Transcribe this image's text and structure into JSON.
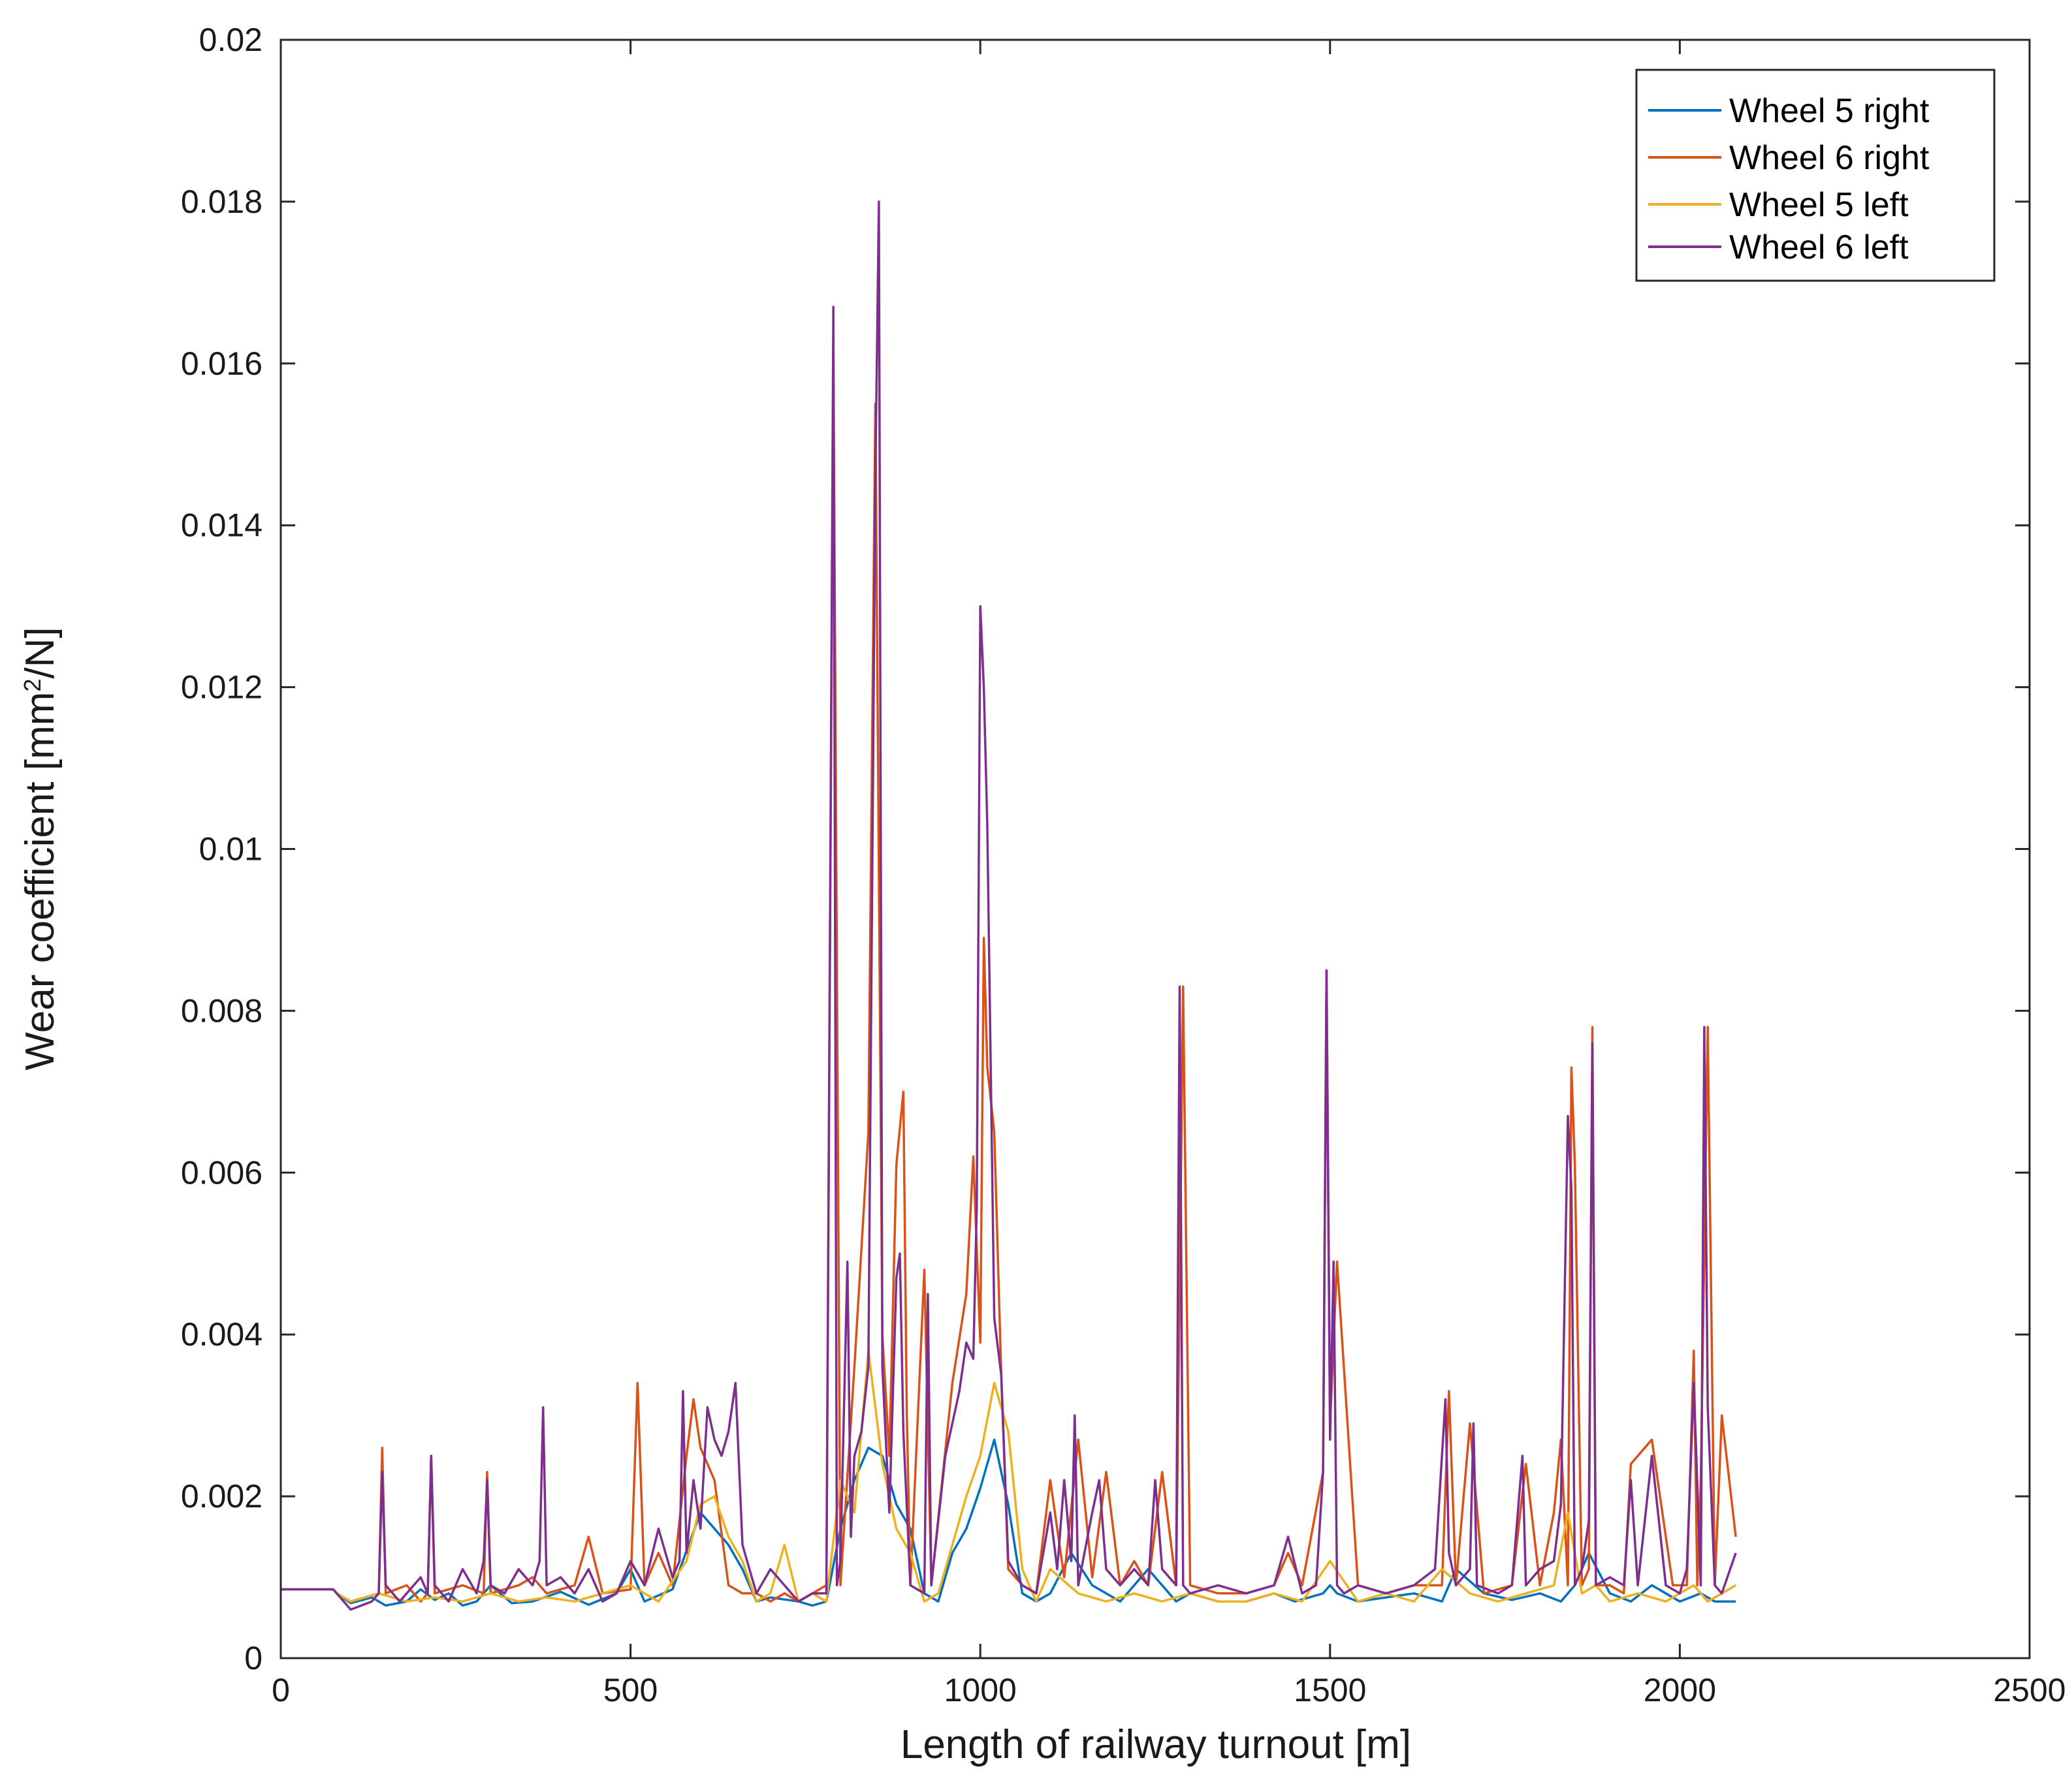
{
  "chart_data": {
    "type": "line",
    "xlabel": "Length of railway turnout [m]",
    "ylabel_main": "Wear coefficient   [mm",
    "ylabel_sup": "2",
    "ylabel_end": "/N]",
    "xlim": [
      0,
      2500
    ],
    "ylim": [
      0,
      0.02
    ],
    "xticks": [
      0,
      500,
      1000,
      1500,
      2000,
      2500
    ],
    "xtick_labels": [
      "0",
      "500",
      "1000",
      "1500",
      "2000",
      "2500"
    ],
    "yticks": [
      0,
      0.002,
      0.004,
      0.006,
      0.008,
      0.01,
      0.012,
      0.014,
      0.016,
      0.018,
      0.02
    ],
    "ytick_labels": [
      "0",
      "0.002",
      "0.004",
      "0.006",
      "0.008",
      "0.01",
      "0.012",
      "0.014",
      "0.016",
      "0.018",
      "0.02"
    ],
    "grid": false,
    "legend_position": "top-right",
    "series": [
      {
        "name": "Wheel 5 right",
        "color": "#0072BD",
        "x": [
          0,
          75,
          80,
          100,
          130,
          150,
          180,
          200,
          220,
          240,
          260,
          280,
          300,
          330,
          360,
          400,
          440,
          480,
          500,
          520,
          560,
          600,
          620,
          640,
          660,
          680,
          700,
          740,
          760,
          780,
          800,
          820,
          840,
          860,
          880,
          900,
          920,
          940,
          960,
          980,
          1000,
          1020,
          1040,
          1060,
          1080,
          1100,
          1130,
          1160,
          1200,
          1240,
          1280,
          1300,
          1340,
          1380,
          1420,
          1450,
          1490,
          1500,
          1510,
          1540,
          1580,
          1620,
          1660,
          1680,
          1720,
          1760,
          1800,
          1830,
          1850,
          1870,
          1900,
          1930,
          1960,
          2000,
          2030,
          2050,
          2080
        ],
        "y": [
          0.00085,
          0.00085,
          0.0008,
          0.00068,
          0.00075,
          0.00065,
          0.0007,
          0.00085,
          0.00072,
          0.0008,
          0.00065,
          0.0007,
          0.0009,
          0.00068,
          0.0007,
          0.00082,
          0.00066,
          0.0008,
          0.0011,
          0.0007,
          0.00085,
          0.0018,
          0.0016,
          0.0014,
          0.0011,
          0.0007,
          0.00075,
          0.0007,
          0.00065,
          0.0007,
          0.0016,
          0.0022,
          0.0026,
          0.0025,
          0.0019,
          0.0016,
          0.0008,
          0.0007,
          0.0013,
          0.0016,
          0.0021,
          0.0027,
          0.0019,
          0.0008,
          0.0007,
          0.0008,
          0.0013,
          0.0009,
          0.0007,
          0.0011,
          0.0007,
          0.0008,
          0.0007,
          0.0007,
          0.0008,
          0.0007,
          0.0008,
          0.0009,
          0.0008,
          0.0007,
          0.00075,
          0.0008,
          0.0007,
          0.0011,
          0.0008,
          0.00072,
          0.0008,
          0.0007,
          0.0009,
          0.0013,
          0.0008,
          0.0007,
          0.0009,
          0.0007,
          0.0008,
          0.0007,
          0.0007
        ]
      },
      {
        "name": "Wheel 6 right",
        "color": "#D95319",
        "x": [
          0,
          75,
          80,
          100,
          140,
          145,
          150,
          180,
          200,
          210,
          215,
          220,
          260,
          290,
          295,
          300,
          340,
          360,
          380,
          420,
          440,
          460,
          500,
          510,
          520,
          540,
          560,
          580,
          590,
          600,
          620,
          640,
          660,
          680,
          700,
          720,
          740,
          760,
          780,
          790,
          800,
          820,
          840,
          850,
          860,
          870,
          880,
          890,
          895,
          900,
          920,
          930,
          960,
          980,
          990,
          1000,
          1005,
          1010,
          1020,
          1030,
          1040,
          1060,
          1080,
          1100,
          1120,
          1140,
          1160,
          1180,
          1200,
          1220,
          1240,
          1260,
          1280,
          1290,
          1300,
          1340,
          1380,
          1420,
          1440,
          1460,
          1490,
          1495,
          1500,
          1510,
          1540,
          1580,
          1620,
          1660,
          1670,
          1680,
          1700,
          1720,
          1760,
          1780,
          1800,
          1820,
          1830,
          1840,
          1845,
          1850,
          1860,
          1870,
          1875,
          1880,
          1900,
          1920,
          1930,
          1960,
          1990,
          2010,
          2020,
          2025,
          2030,
          2040,
          2050,
          2060,
          2080
        ],
        "y": [
          0.00085,
          0.00085,
          0.0008,
          0.0007,
          0.0008,
          0.0026,
          0.0008,
          0.0009,
          0.0007,
          0.0008,
          0.0025,
          0.0008,
          0.0009,
          0.0008,
          0.0023,
          0.0008,
          0.0009,
          0.001,
          0.0008,
          0.0009,
          0.0015,
          0.0008,
          0.00085,
          0.0034,
          0.0009,
          0.0013,
          0.0009,
          0.0025,
          0.0032,
          0.0026,
          0.0022,
          0.0009,
          0.0008,
          0.0008,
          0.0007,
          0.0008,
          0.0007,
          0.0008,
          0.0009,
          0.0162,
          0.0009,
          0.0036,
          0.0065,
          0.0155,
          0.004,
          0.0025,
          0.0061,
          0.007,
          0.003,
          0.0009,
          0.0048,
          0.0009,
          0.0034,
          0.0045,
          0.0062,
          0.0039,
          0.0089,
          0.0073,
          0.0065,
          0.0035,
          0.0011,
          0.0009,
          0.0008,
          0.0022,
          0.001,
          0.0027,
          0.001,
          0.0023,
          0.0009,
          0.0012,
          0.0009,
          0.0023,
          0.0009,
          0.0083,
          0.0009,
          0.0008,
          0.0008,
          0.0009,
          0.0013,
          0.0009,
          0.0023,
          0.0085,
          0.0029,
          0.0049,
          0.0009,
          0.0008,
          0.0009,
          0.0009,
          0.0033,
          0.0009,
          0.0029,
          0.0008,
          0.0009,
          0.0024,
          0.0009,
          0.0018,
          0.0027,
          0.0009,
          0.0073,
          0.0061,
          0.0009,
          0.0011,
          0.0078,
          0.0009,
          0.0009,
          0.0008,
          0.0024,
          0.0027,
          0.0009,
          0.0009,
          0.0038,
          0.0009,
          0.0022,
          0.0078,
          0.0009,
          0.003,
          0.0015
        ]
      },
      {
        "name": "Wheel 5 left",
        "color": "#EDB120",
        "x": [
          0,
          75,
          80,
          100,
          140,
          180,
          220,
          260,
          300,
          340,
          380,
          420,
          460,
          500,
          540,
          580,
          600,
          620,
          640,
          660,
          680,
          700,
          720,
          740,
          760,
          780,
          800,
          820,
          840,
          860,
          880,
          900,
          920,
          940,
          960,
          980,
          1000,
          1020,
          1040,
          1060,
          1080,
          1100,
          1140,
          1180,
          1220,
          1260,
          1300,
          1340,
          1380,
          1420,
          1460,
          1500,
          1540,
          1580,
          1620,
          1660,
          1700,
          1740,
          1780,
          1820,
          1840,
          1860,
          1880,
          1900,
          1940,
          1980,
          2020,
          2040,
          2060,
          2080
        ],
        "y": [
          0.00085,
          0.00085,
          0.0008,
          0.0007,
          0.0008,
          0.0007,
          0.00075,
          0.0007,
          0.0008,
          0.0007,
          0.00075,
          0.0007,
          0.0008,
          0.0009,
          0.0007,
          0.0012,
          0.0019,
          0.002,
          0.0015,
          0.0012,
          0.0007,
          0.0008,
          0.0014,
          0.0007,
          0.0008,
          0.0007,
          0.0022,
          0.0018,
          0.0038,
          0.0024,
          0.0016,
          0.0013,
          0.0007,
          0.0008,
          0.0014,
          0.002,
          0.0025,
          0.0034,
          0.0028,
          0.0011,
          0.0007,
          0.0011,
          0.0008,
          0.0007,
          0.0008,
          0.0007,
          0.0008,
          0.0007,
          0.0007,
          0.0008,
          0.0007,
          0.0012,
          0.0007,
          0.0008,
          0.0007,
          0.0011,
          0.0008,
          0.0007,
          0.0008,
          0.0009,
          0.0018,
          0.0008,
          0.0009,
          0.0007,
          0.0008,
          0.0007,
          0.0009,
          0.0007,
          0.0008,
          0.0009
        ]
      },
      {
        "name": "Wheel 6 left",
        "color": "#7E2F8E",
        "x": [
          0,
          75,
          80,
          100,
          130,
          140,
          145,
          150,
          170,
          200,
          210,
          215,
          220,
          240,
          260,
          280,
          290,
          295,
          300,
          320,
          340,
          360,
          370,
          375,
          380,
          400,
          420,
          440,
          460,
          480,
          500,
          520,
          540,
          560,
          570,
          575,
          580,
          590,
          600,
          610,
          620,
          630,
          640,
          650,
          660,
          680,
          700,
          720,
          740,
          760,
          780,
          790,
          795,
          800,
          810,
          815,
          820,
          830,
          840,
          850,
          855,
          860,
          870,
          880,
          885,
          890,
          900,
          920,
          925,
          930,
          950,
          970,
          980,
          990,
          995,
          1000,
          1005,
          1010,
          1020,
          1030,
          1040,
          1060,
          1080,
          1100,
          1110,
          1120,
          1130,
          1135,
          1140,
          1160,
          1170,
          1180,
          1200,
          1220,
          1240,
          1250,
          1260,
          1280,
          1285,
          1290,
          1300,
          1340,
          1380,
          1420,
          1440,
          1460,
          1480,
          1490,
          1495,
          1500,
          1505,
          1510,
          1520,
          1540,
          1580,
          1620,
          1650,
          1665,
          1670,
          1680,
          1700,
          1705,
          1710,
          1740,
          1760,
          1775,
          1780,
          1800,
          1820,
          1830,
          1840,
          1845,
          1850,
          1860,
          1870,
          1875,
          1880,
          1900,
          1920,
          1930,
          1940,
          1960,
          1980,
          2000,
          2010,
          2020,
          2030,
          2035,
          2040,
          2050,
          2060,
          2080
        ],
        "y": [
          0.00085,
          0.00085,
          0.0008,
          0.0006,
          0.0007,
          0.0008,
          0.0023,
          0.0009,
          0.0007,
          0.001,
          0.0008,
          0.0025,
          0.0009,
          0.0007,
          0.0011,
          0.0008,
          0.0012,
          0.0022,
          0.0009,
          0.0008,
          0.0011,
          0.0009,
          0.0012,
          0.0031,
          0.0009,
          0.001,
          0.0008,
          0.0011,
          0.0007,
          0.0008,
          0.0012,
          0.0009,
          0.0016,
          0.001,
          0.0012,
          0.0033,
          0.0013,
          0.0022,
          0.0016,
          0.0031,
          0.0027,
          0.0025,
          0.0028,
          0.0034,
          0.0014,
          0.0008,
          0.0011,
          0.0009,
          0.0007,
          0.0008,
          0.0008,
          0.0167,
          0.0009,
          0.0012,
          0.0049,
          0.0015,
          0.0025,
          0.0028,
          0.0036,
          0.0146,
          0.018,
          0.0036,
          0.0018,
          0.0047,
          0.005,
          0.0028,
          0.0009,
          0.0008,
          0.0045,
          0.0009,
          0.0025,
          0.0033,
          0.0039,
          0.0037,
          0.0056,
          0.013,
          0.012,
          0.0103,
          0.0042,
          0.0035,
          0.0012,
          0.0009,
          0.0008,
          0.0018,
          0.0011,
          0.0022,
          0.0012,
          0.003,
          0.0009,
          0.0018,
          0.0022,
          0.0011,
          0.0009,
          0.0011,
          0.0009,
          0.0022,
          0.0011,
          0.0009,
          0.0083,
          0.0009,
          0.0008,
          0.0009,
          0.0008,
          0.0009,
          0.0015,
          0.0008,
          0.0009,
          0.0023,
          0.0085,
          0.0027,
          0.0049,
          0.0009,
          0.0008,
          0.0009,
          0.0008,
          0.0009,
          0.0011,
          0.0032,
          0.0013,
          0.0009,
          0.0011,
          0.0029,
          0.0009,
          0.0008,
          0.0009,
          0.0025,
          0.0009,
          0.0011,
          0.0012,
          0.0019,
          0.0067,
          0.0058,
          0.0009,
          0.0011,
          0.0017,
          0.0076,
          0.0009,
          0.001,
          0.0009,
          0.0022,
          0.0009,
          0.0025,
          0.0009,
          0.0008,
          0.0011,
          0.0034,
          0.0009,
          0.0078,
          0.0031,
          0.0009,
          0.0008,
          0.0013
        ]
      }
    ]
  }
}
